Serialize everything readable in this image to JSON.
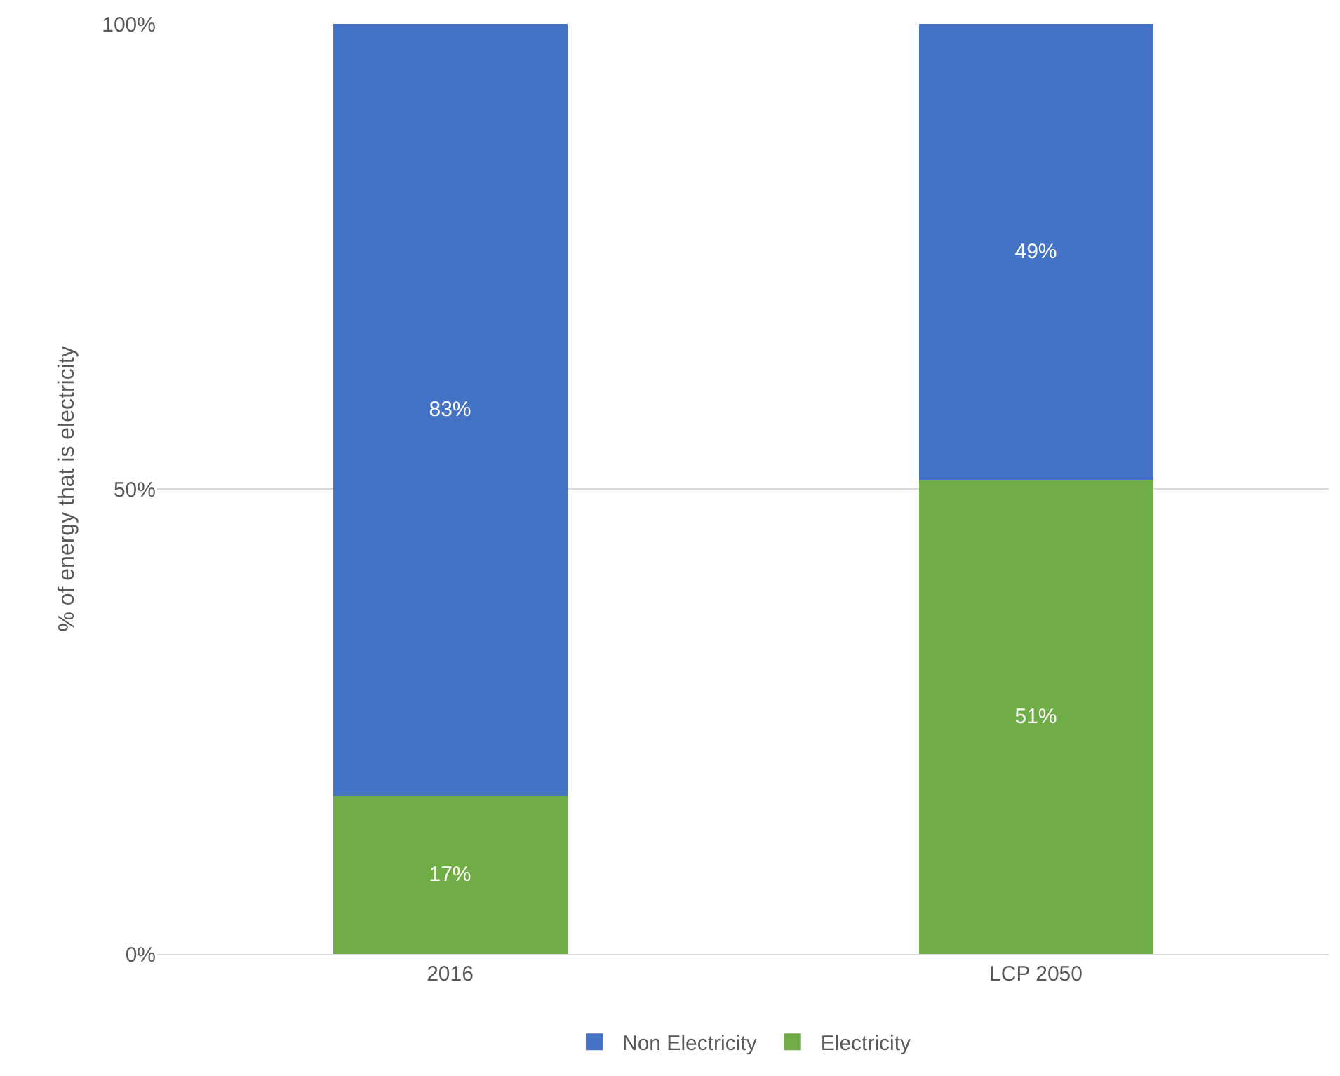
{
  "chart_data": {
    "type": "bar",
    "stacked": true,
    "ylabel": "% of energy that is electricity",
    "categories": [
      "2016",
      "LCP 2050"
    ],
    "series": [
      {
        "name": "Electricity",
        "color": "#70ad47",
        "values": [
          17,
          51
        ],
        "value_labels": [
          "17%",
          "51%"
        ]
      },
      {
        "name": "Non Electricity",
        "color": "#4472c4",
        "values": [
          83,
          49
        ],
        "value_labels": [
          "83%",
          "49%"
        ]
      }
    ],
    "ylim": [
      0,
      100
    ],
    "yticks": [
      {
        "value": 0,
        "label": "0%"
      },
      {
        "value": 50,
        "label": "50%"
      },
      {
        "value": 100,
        "label": "100%"
      }
    ],
    "grid": "y",
    "legend": "bottom"
  }
}
